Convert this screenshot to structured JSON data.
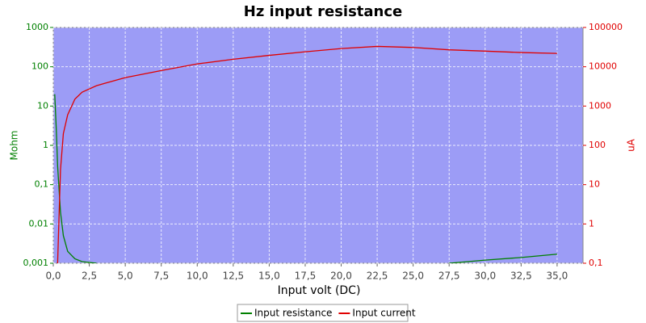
{
  "chart_data": {
    "type": "line",
    "title": "Hz input resistance",
    "x_label": "Input volt (DC)",
    "y_label": "Mohm",
    "y2_label": "uA",
    "x": [
      0.1,
      0.2,
      0.3,
      0.5,
      0.7,
      1,
      1.5,
      2,
      3,
      5,
      7.5,
      10,
      12.5,
      15,
      17.5,
      20,
      22.5,
      25,
      27.5,
      30,
      32.5,
      35
    ],
    "series": [
      {
        "name": "Input resistance",
        "color": "#008000",
        "axis": "y",
        "values": [
          20,
          3,
          0.3,
          0.02,
          0.005,
          0.002,
          0.0013,
          0.0011,
          0.001,
          null,
          null,
          null,
          null,
          null,
          null,
          null,
          null,
          null,
          0.001,
          0.0012,
          0.0014,
          0.0017
        ]
      },
      {
        "name": "Input current",
        "color": "#e00000",
        "axis": "y2",
        "values": [
          null,
          null,
          0.1,
          24,
          200,
          600,
          1500,
          2250,
          3300,
          5300,
          8000,
          11800,
          15500,
          19500,
          24000,
          29000,
          33000,
          31000,
          27000,
          25000,
          23000,
          21900
        ]
      }
    ],
    "xlim": [
      0,
      36.8
    ],
    "xticks": [
      {
        "value": 0,
        "label": "0,0"
      },
      {
        "value": 2.5,
        "label": "2,5"
      },
      {
        "value": 5,
        "label": "5,0"
      },
      {
        "value": 7.5,
        "label": "7,5"
      },
      {
        "value": 10,
        "label": "10,0"
      },
      {
        "value": 12.5,
        "label": "12,5"
      },
      {
        "value": 15,
        "label": "15,0"
      },
      {
        "value": 17.5,
        "label": "17,5"
      },
      {
        "value": 20,
        "label": "20,0"
      },
      {
        "value": 22.5,
        "label": "22,5"
      },
      {
        "value": 25,
        "label": "25,0"
      },
      {
        "value": 27.5,
        "label": "27,5"
      },
      {
        "value": 30,
        "label": "30,0"
      },
      {
        "value": 32.5,
        "label": "32,5"
      },
      {
        "value": 35,
        "label": "35,0"
      }
    ],
    "ylim": [
      0.001,
      1000
    ],
    "y_log": true,
    "yticks": [
      {
        "value": 0.001,
        "label": "0,001"
      },
      {
        "value": 0.01,
        "label": "0,01"
      },
      {
        "value": 0.1,
        "label": "0,1"
      },
      1,
      10,
      100,
      1000
    ],
    "y2lim": [
      0.1,
      100000
    ],
    "y2_log": true,
    "y2ticks": [
      {
        "value": 0.1,
        "label": "0,1"
      },
      1,
      10,
      100,
      1000,
      10000,
      100000
    ],
    "grid": true,
    "legend": "bottom",
    "background": "#9c9cf6"
  }
}
